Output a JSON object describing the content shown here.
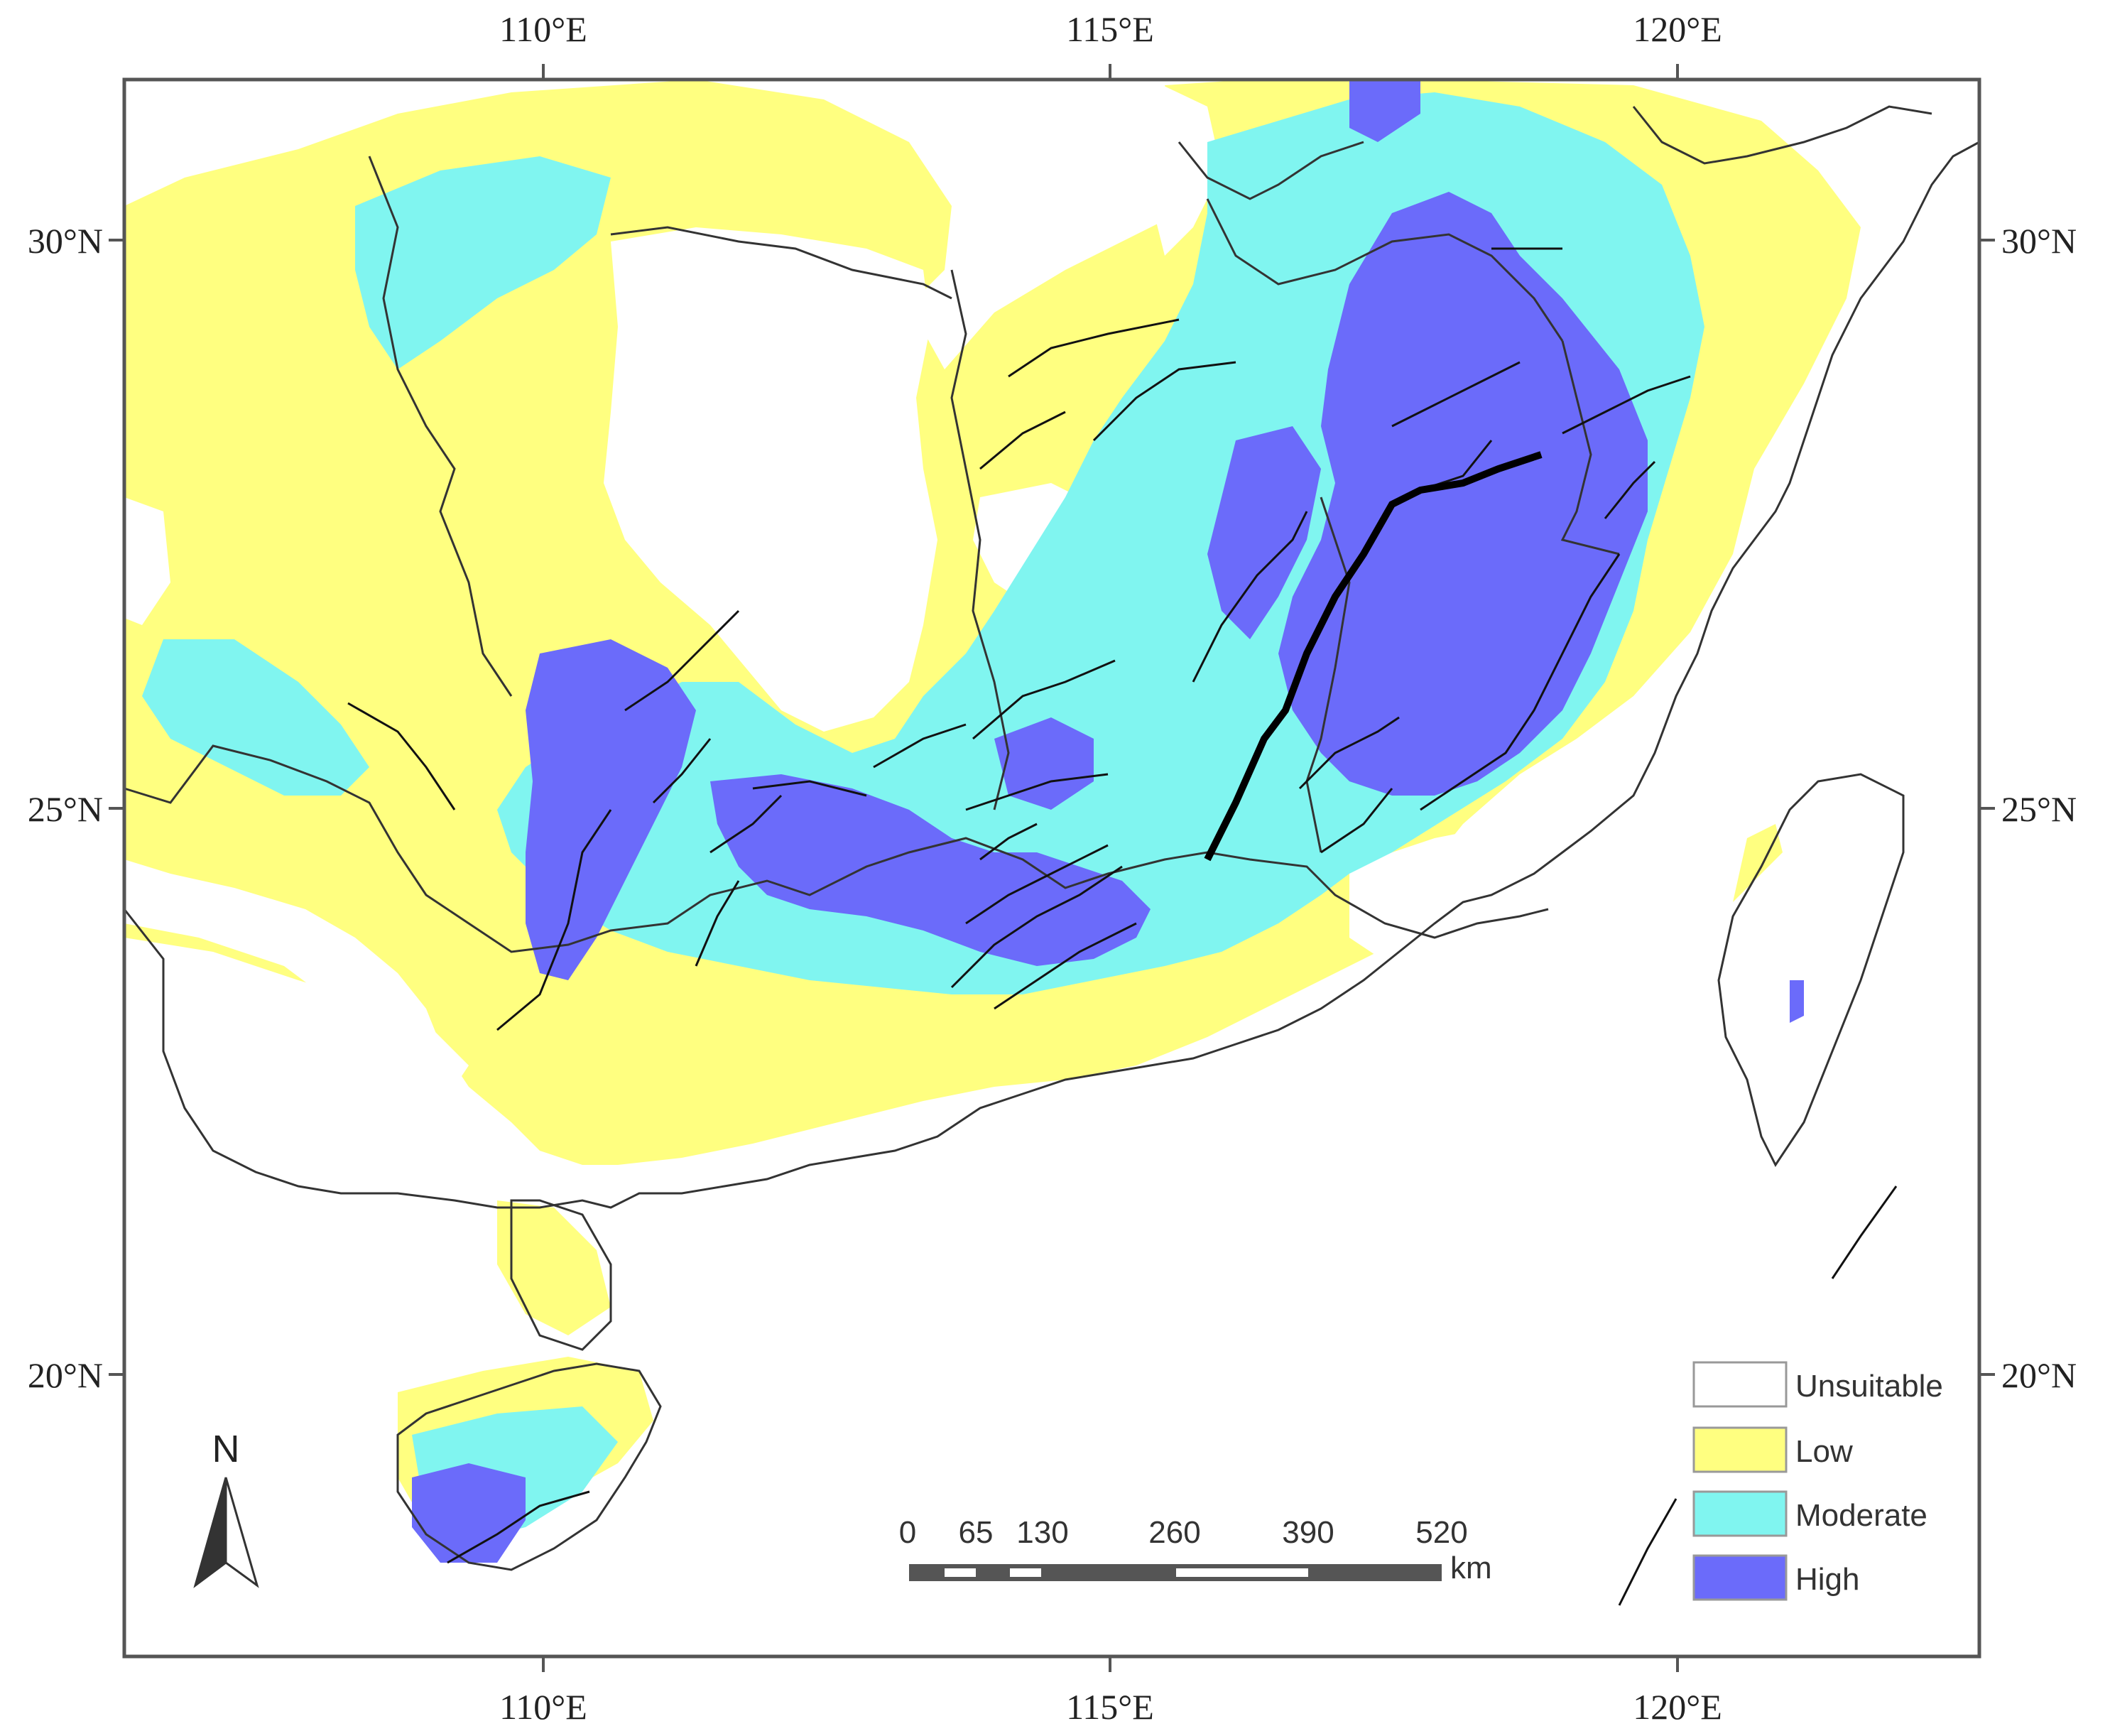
{
  "axes": {
    "top_ticks": [
      "110°E",
      "115°E",
      "120°E"
    ],
    "bottom_ticks": [
      "110°E",
      "115°E",
      "120°E"
    ],
    "left_ticks": [
      "30°N",
      "25°N",
      "20°N"
    ],
    "right_ticks": [
      "30°N",
      "25°N",
      "20°N"
    ]
  },
  "legend": {
    "items": [
      {
        "label": "Unsuitable",
        "color": "#ffffff"
      },
      {
        "label": "Low",
        "color": "#ffff80"
      },
      {
        "label": "Moderate",
        "color": "#80f5f0"
      },
      {
        "label": "High",
        "color": "#6b6bfa"
      }
    ]
  },
  "scale_bar": {
    "labels": [
      "0",
      "65",
      "130",
      "260",
      "390",
      "520"
    ],
    "unit": "km"
  },
  "north_arrow": {
    "label": "N"
  }
}
